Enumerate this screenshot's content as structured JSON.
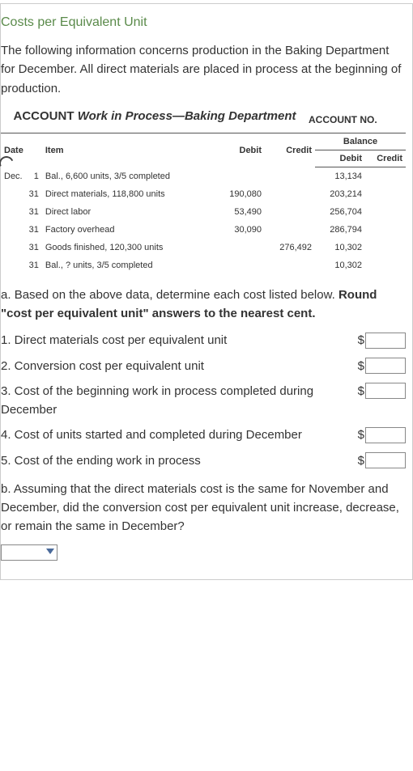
{
  "title": "Costs per Equivalent Unit",
  "intro": "The following information concerns production in the Baking Department for December. All direct materials are placed in process at the beginning of production.",
  "account_heading_prefix": "ACCOUNT ",
  "account_heading_italic": "Work in Process—Baking Department",
  "account_no_label": "ACCOUNT NO.",
  "ledger": {
    "headers": {
      "date": "Date",
      "item": "Item",
      "debit": "Debit",
      "credit": "Credit",
      "balance": "Balance",
      "bdebit": "Debit",
      "bcredit": "Credit"
    },
    "month": "Dec.",
    "rows": [
      {
        "day": "1",
        "item": "Bal., 6,600 units, 3/5 completed",
        "debit": "",
        "credit": "",
        "bdebit": "13,134",
        "bcredit": ""
      },
      {
        "day": "31",
        "item": "Direct materials, 118,800 units",
        "debit": "190,080",
        "credit": "",
        "bdebit": "203,214",
        "bcredit": ""
      },
      {
        "day": "31",
        "item": "Direct labor",
        "debit": "53,490",
        "credit": "",
        "bdebit": "256,704",
        "bcredit": ""
      },
      {
        "day": "31",
        "item": "Factory overhead",
        "debit": "30,090",
        "credit": "",
        "bdebit": "286,794",
        "bcredit": ""
      },
      {
        "day": "31",
        "item": "Goods finished, 120,300 units",
        "debit": "",
        "credit": "276,492",
        "bdebit": "10,302",
        "bcredit": ""
      },
      {
        "day": "31",
        "item": "Bal., ? units, 3/5 completed",
        "debit": "",
        "credit": "",
        "bdebit": "10,302",
        "bcredit": ""
      }
    ]
  },
  "part_a_prefix": "a.",
  "part_a_text_1": "Based on the above data, determine each cost listed below. ",
  "part_a_bold": "Round \"cost per equivalent unit\" answers to the nearest cent.",
  "questions": [
    "1.  Direct materials cost per equivalent unit",
    "2.  Conversion cost per equivalent unit",
    "3.  Cost of the beginning work in process completed during December",
    "4.  Cost of units started and completed during December",
    "5.  Cost of the ending work in process"
  ],
  "dollar": "$",
  "part_b_prefix": "b.",
  "part_b_text": "Assuming that the direct materials cost is the same for November and December, did the conversion cost per equivalent unit increase, decrease, or remain the same in December?",
  "colors": {
    "title": "#5a8a4a",
    "text": "#333333",
    "border": "#cccccc",
    "rule": "#555555",
    "caret": "#4a6a9a"
  }
}
